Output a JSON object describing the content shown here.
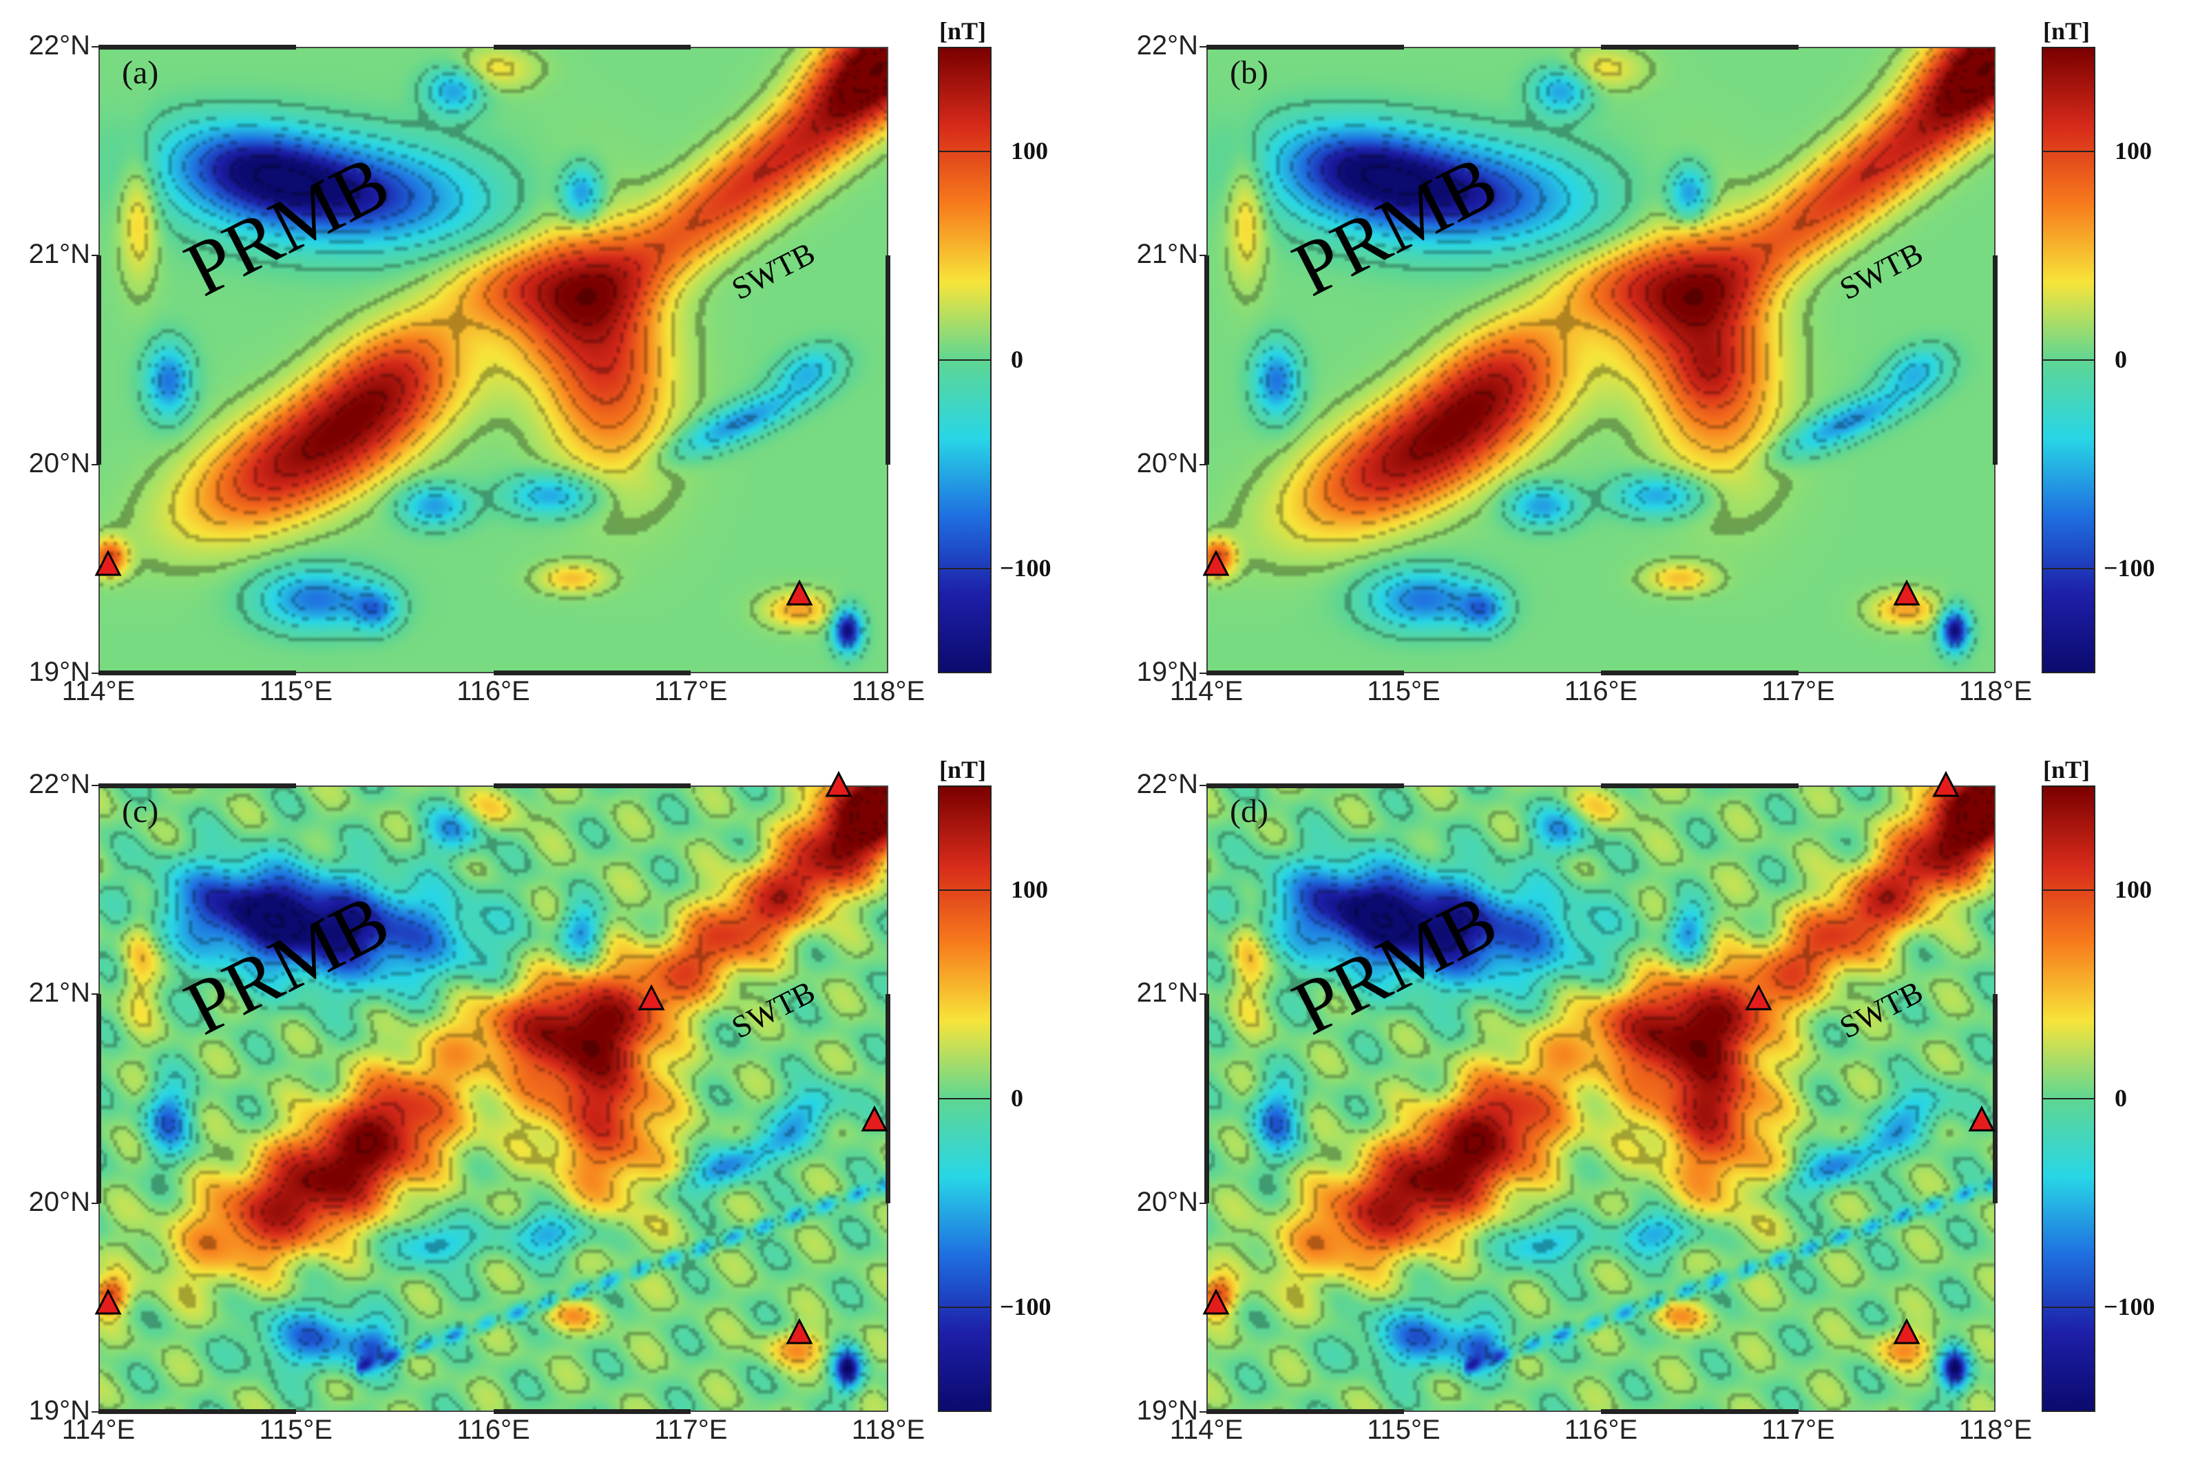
{
  "panels": [
    {
      "label": "(a)",
      "show_extra_markers": false
    },
    {
      "label": "(b)",
      "show_extra_markers": false
    },
    {
      "label": "(c)",
      "show_extra_markers": true
    },
    {
      "label": "(d)",
      "show_extra_markers": true
    }
  ],
  "annotations": {
    "basin_1": "PRMB",
    "basin_2": "SWTB"
  },
  "axes": {
    "x_ticks": [
      "114°E",
      "115°E",
      "116°E",
      "117°E",
      "118°E"
    ],
    "y_ticks": [
      "22°N",
      "21°N",
      "20°N",
      "19°N"
    ]
  },
  "colorbar": {
    "unit": "[nT]",
    "ticks": [
      "100",
      "0",
      "−100"
    ],
    "colors": [
      "#7a0000",
      "#d62a1a",
      "#f77b1c",
      "#f7e43a",
      "#5fd692",
      "#28d6e6",
      "#1f6fe0",
      "#1d1fa8",
      "#0b0a6e"
    ]
  },
  "chart_data": {
    "type": "heatmap",
    "title": "",
    "xlabel": "",
    "ylabel": "",
    "xlim": [
      114,
      118
    ],
    "ylim": [
      19,
      22
    ],
    "colorbar_range": [
      -150,
      150
    ],
    "colorbar_ticks": [
      100,
      0,
      -100
    ],
    "colorbar_unit": "nT",
    "panels": [
      "(a)",
      "(b)",
      "(c)",
      "(d)"
    ],
    "markers": {
      "symbol": "red triangle",
      "common": [
        [
          114.05,
          19.47
        ],
        [
          117.55,
          19.33
        ]
      ],
      "extra_c_d": [
        [
          116.8,
          20.93
        ],
        [
          117.75,
          21.95
        ],
        [
          117.95,
          20.35
        ]
      ]
    }
  }
}
